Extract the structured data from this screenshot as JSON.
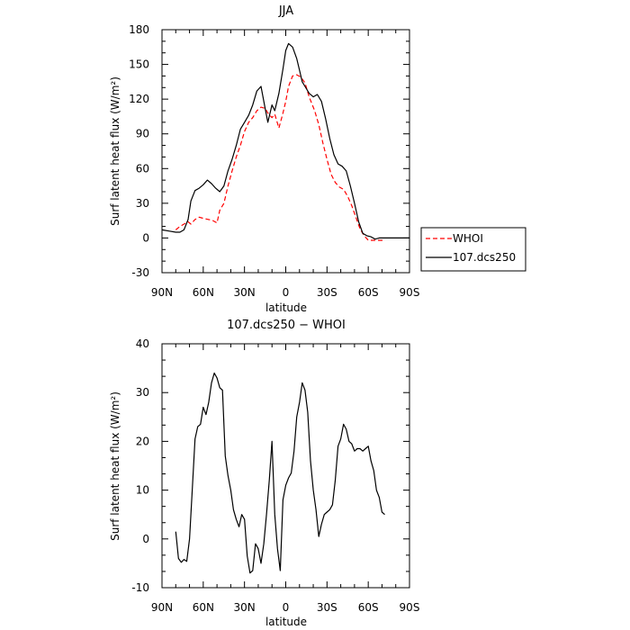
{
  "chart_data": [
    {
      "type": "line",
      "title": "JJA",
      "xlabel": "latitude",
      "ylabel": "Surf latent heat flux (W/m²)",
      "xlim": [
        90,
        -90
      ],
      "ylim": [
        -30,
        180
      ],
      "xticks": [
        90,
        60,
        30,
        0,
        -30,
        -60,
        -90
      ],
      "xtick_labels": [
        "90N",
        "60N",
        "30N",
        "0",
        "30S",
        "60S",
        "90S"
      ],
      "yticks": [
        -30,
        0,
        30,
        60,
        90,
        120,
        150,
        180
      ],
      "ytick_labels": [
        "-30",
        "0",
        "30",
        "60",
        "90",
        "120",
        "150",
        "180"
      ],
      "legend": "right-outside",
      "series": [
        {
          "name": "WHOI",
          "color": "#ff0000",
          "dash": "dashed",
          "x": [
            80,
            77,
            74,
            71,
            69,
            66,
            63,
            60,
            56,
            53,
            50,
            48,
            45,
            42,
            39,
            36,
            33,
            30,
            27,
            24,
            21,
            18,
            15,
            13,
            10,
            8,
            5,
            2,
            0,
            -2,
            -5,
            -8,
            -11,
            -14,
            -17,
            -21,
            -24,
            -27,
            -30,
            -33,
            -36,
            -39,
            -42,
            -45,
            -48,
            -51,
            -54,
            -57,
            -60,
            -63,
            -66,
            -69,
            -72
          ],
          "y": [
            7,
            10,
            12,
            14,
            12,
            16,
            18,
            17,
            16,
            15,
            13,
            24,
            30,
            45,
            58,
            70,
            80,
            92,
            100,
            104,
            110,
            113,
            112,
            108,
            104,
            107,
            95,
            108,
            118,
            131,
            140,
            141,
            139,
            134,
            122,
            110,
            98,
            82,
            68,
            55,
            48,
            44,
            42,
            36,
            28,
            18,
            8,
            2,
            -2,
            -2,
            -2,
            -2,
            -2
          ]
        },
        {
          "name": "107.dcs250",
          "color": "#000000",
          "dash": "solid",
          "x": [
            90,
            85,
            80,
            77,
            74,
            71,
            69,
            66,
            63,
            60,
            57,
            54,
            51,
            48,
            45,
            42,
            39,
            36,
            33,
            30,
            27,
            24,
            21,
            18,
            15,
            13,
            10,
            8,
            5,
            2,
            0,
            -2,
            -5,
            -8,
            -10,
            -12,
            -14,
            -17,
            -20,
            -23,
            -26,
            -29,
            -32,
            -35,
            -38,
            -41,
            -44,
            -47,
            -50,
            -53,
            -56,
            -59,
            -62,
            -65,
            -68,
            -72,
            -76,
            -80,
            -85,
            -90
          ],
          "y": [
            7,
            6,
            5,
            5,
            7,
            16,
            32,
            41,
            43,
            46,
            50,
            47,
            43,
            40,
            45,
            58,
            68,
            80,
            94,
            100,
            106,
            115,
            127,
            131,
            112,
            100,
            115,
            110,
            125,
            146,
            162,
            168,
            165,
            155,
            145,
            135,
            131,
            125,
            122,
            124,
            118,
            103,
            86,
            72,
            64,
            62,
            58,
            45,
            30,
            14,
            4,
            2,
            1,
            -1,
            0,
            0,
            0,
            0,
            0,
            0
          ]
        }
      ]
    },
    {
      "type": "line",
      "title": "107.dcs250 − WHOI",
      "xlabel": "latitude",
      "ylabel": "Surf latent heat flux (W/m²)",
      "xlim": [
        90,
        -90
      ],
      "ylim": [
        -10,
        40
      ],
      "xticks": [
        90,
        60,
        30,
        0,
        -30,
        -60,
        -90
      ],
      "xtick_labels": [
        "90N",
        "60N",
        "30N",
        "0",
        "30S",
        "60S",
        "90S"
      ],
      "yticks": [
        -10,
        0,
        10,
        20,
        30,
        40
      ],
      "ytick_labels": [
        "-10",
        "0",
        "10",
        "20",
        "30",
        "40"
      ],
      "series": [
        {
          "color": "#000000",
          "dash": "solid",
          "x": [
            80,
            78,
            76,
            74,
            72,
            70,
            68,
            66,
            64,
            62,
            60,
            58,
            56,
            54,
            52,
            50,
            48,
            46,
            44,
            42,
            40,
            38,
            36,
            34,
            32,
            30,
            28,
            26,
            24,
            22,
            20,
            18,
            16,
            14,
            12,
            10,
            8,
            6,
            4,
            2,
            0,
            -2,
            -4,
            -6,
            -8,
            -10,
            -12,
            -14,
            -16,
            -18,
            -20,
            -22,
            -24,
            -26,
            -28,
            -30,
            -32,
            -34,
            -36,
            -38,
            -40,
            -42,
            -44,
            -46,
            -48,
            -50,
            -52,
            -54,
            -56,
            -58,
            -60,
            -62,
            -64,
            -66,
            -68,
            -70,
            -72
          ],
          "y": [
            1.5,
            -4,
            -4.8,
            -4.2,
            -4.6,
            0,
            10,
            20.5,
            23,
            23.5,
            27,
            25.5,
            28,
            32,
            34,
            33,
            31,
            30.5,
            17,
            13,
            10,
            6,
            4,
            2.5,
            5,
            4,
            -3.5,
            -7,
            -6.5,
            -1,
            -2,
            -5,
            -1,
            5,
            12,
            20,
            5,
            -2,
            -6.5,
            8,
            11,
            12.5,
            13.5,
            18,
            25,
            28,
            32,
            30.5,
            26,
            16,
            10,
            6,
            0.5,
            3,
            5,
            5.5,
            6,
            7,
            12,
            19,
            20.5,
            23.5,
            22.5,
            20,
            19.5,
            18,
            18.5,
            18.5,
            18,
            18.5,
            19,
            16,
            14,
            10,
            8.5,
            5.5,
            5
          ]
        }
      ]
    }
  ]
}
